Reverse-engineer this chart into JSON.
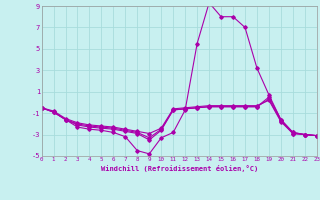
{
  "xlabel": "Windchill (Refroidissement éolien,°C)",
  "bg_color": "#c8f0f0",
  "grid_color": "#a8dcdc",
  "line_color": "#aa00aa",
  "xlim": [
    0,
    23
  ],
  "ylim": [
    -5,
    9
  ],
  "xticks": [
    0,
    1,
    2,
    3,
    4,
    5,
    6,
    7,
    8,
    9,
    10,
    11,
    12,
    13,
    14,
    15,
    16,
    17,
    18,
    19,
    20,
    21,
    22,
    23
  ],
  "yticks": [
    -5,
    -3,
    -1,
    1,
    3,
    5,
    7,
    9
  ],
  "series": [
    [
      [
        0,
        -0.5
      ],
      [
        1,
        -0.9
      ],
      [
        2,
        -1.6
      ],
      [
        3,
        -2.3
      ],
      [
        4,
        -2.5
      ],
      [
        5,
        -2.6
      ],
      [
        6,
        -2.8
      ],
      [
        7,
        -3.2
      ],
      [
        8,
        -4.5
      ],
      [
        9,
        -4.8
      ],
      [
        10,
        -3.3
      ],
      [
        11,
        -2.8
      ],
      [
        12,
        -0.7
      ],
      [
        13,
        5.5
      ],
      [
        14,
        9.3
      ],
      [
        15,
        8.0
      ],
      [
        16,
        8.0
      ],
      [
        17,
        7.0
      ],
      [
        18,
        3.2
      ],
      [
        19,
        0.7
      ],
      [
        20,
        -1.6
      ],
      [
        21,
        -2.8
      ],
      [
        22,
        -3.0
      ],
      [
        23,
        -3.1
      ]
    ],
    [
      [
        0,
        -0.5
      ],
      [
        1,
        -0.9
      ],
      [
        2,
        -1.6
      ],
      [
        3,
        -2.1
      ],
      [
        4,
        -2.3
      ],
      [
        5,
        -2.4
      ],
      [
        6,
        -2.5
      ],
      [
        7,
        -2.7
      ],
      [
        8,
        -2.9
      ],
      [
        9,
        -3.5
      ],
      [
        10,
        -2.6
      ],
      [
        11,
        -0.7
      ],
      [
        12,
        -0.6
      ],
      [
        13,
        -0.5
      ],
      [
        14,
        -0.4
      ],
      [
        15,
        -0.4
      ],
      [
        16,
        -0.4
      ],
      [
        17,
        -0.4
      ],
      [
        18,
        -0.4
      ],
      [
        19,
        0.5
      ],
      [
        20,
        -1.6
      ],
      [
        21,
        -2.8
      ],
      [
        22,
        -3.0
      ],
      [
        23,
        -3.1
      ]
    ],
    [
      [
        0,
        -0.5
      ],
      [
        1,
        -0.9
      ],
      [
        2,
        -1.6
      ],
      [
        3,
        -2.0
      ],
      [
        4,
        -2.2
      ],
      [
        5,
        -2.3
      ],
      [
        6,
        -2.4
      ],
      [
        7,
        -2.6
      ],
      [
        8,
        -2.8
      ],
      [
        9,
        -3.3
      ],
      [
        10,
        -2.5
      ],
      [
        11,
        -0.7
      ],
      [
        12,
        -0.6
      ],
      [
        13,
        -0.5
      ],
      [
        14,
        -0.4
      ],
      [
        15,
        -0.4
      ],
      [
        16,
        -0.4
      ],
      [
        17,
        -0.4
      ],
      [
        18,
        -0.4
      ],
      [
        19,
        0.3
      ],
      [
        20,
        -1.7
      ],
      [
        21,
        -2.9
      ],
      [
        22,
        -3.0
      ],
      [
        23,
        -3.1
      ]
    ],
    [
      [
        0,
        -0.5
      ],
      [
        1,
        -0.8
      ],
      [
        2,
        -1.5
      ],
      [
        3,
        -1.9
      ],
      [
        4,
        -2.1
      ],
      [
        5,
        -2.2
      ],
      [
        6,
        -2.3
      ],
      [
        7,
        -2.5
      ],
      [
        8,
        -2.7
      ],
      [
        9,
        -2.9
      ],
      [
        10,
        -2.4
      ],
      [
        11,
        -0.6
      ],
      [
        12,
        -0.5
      ],
      [
        13,
        -0.4
      ],
      [
        14,
        -0.3
      ],
      [
        15,
        -0.3
      ],
      [
        16,
        -0.3
      ],
      [
        17,
        -0.3
      ],
      [
        18,
        -0.3
      ],
      [
        19,
        0.2
      ],
      [
        20,
        -1.8
      ],
      [
        21,
        -2.9
      ],
      [
        22,
        -3.0
      ],
      [
        23,
        -3.1
      ]
    ]
  ]
}
